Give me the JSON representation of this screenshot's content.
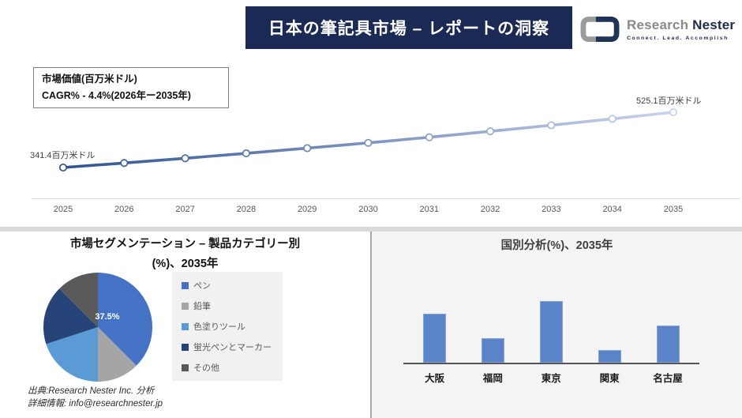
{
  "header": {
    "title": "日本の筆記具市場 – レポートの洞察"
  },
  "logo": {
    "brand_first": "Research",
    "brand_second": "Nester",
    "tagline": "Connect. Lead. Accomplish",
    "icon": "interlocked-links-icon",
    "colors": {
      "gray": "#9b9b9b",
      "navy": "#203457"
    }
  },
  "info_box": {
    "line1": "市場価値(百万米ドル)",
    "line2": "CAGR% - 4.4%(2026年ー2035年)"
  },
  "chart_data": [
    {
      "id": "market-value-trend",
      "type": "line",
      "title": "市場価値(百万米ドル)",
      "x": [
        2025,
        2026,
        2027,
        2028,
        2029,
        2030,
        2031,
        2032,
        2033,
        2034,
        2035
      ],
      "values": [
        341.4,
        356.4,
        372.1,
        388.5,
        405.6,
        423.4,
        442.0,
        461.5,
        481.8,
        503.0,
        525.1
      ],
      "start_label": "341.4百万米ドル",
      "end_label": "525.1百万米ドル",
      "cagr_percent": 4.4,
      "grid": false,
      "marker": "open-circle",
      "line_gradient": [
        "#2f5491",
        "#cbd3ec"
      ]
    },
    {
      "id": "segmentation-pie",
      "type": "pie",
      "title": "市場セグメンテーション – 製品カテゴリー別(%)、2035年",
      "title_line1": "市場セグメンテーション – 製品カテゴリー別",
      "title_line2": "(%)、2035年",
      "labels": [
        "ペン",
        "鉛筆",
        "色塗りツール",
        "蛍光ペンとマーカー",
        "その他"
      ],
      "values": [
        37.5,
        12.5,
        20.0,
        17.5,
        12.5
      ],
      "colors": [
        "#4472c4",
        "#a5a5a5",
        "#5b9bd5",
        "#264478",
        "#595959"
      ],
      "shown_label": "37.5%",
      "legend_position": "right"
    },
    {
      "id": "country-analysis-bar",
      "type": "bar",
      "title": "国別分析(%)、2035年",
      "categories": [
        "大阪",
        "福岡",
        "東京",
        "関東",
        "名古屋"
      ],
      "values": [
        24,
        12,
        30,
        6,
        18
      ],
      "bar_color": "#5b84c8",
      "ylim": [
        0,
        35
      ],
      "grid": false
    }
  ],
  "footer": {
    "line1": "出典:Research Nester Inc. 分析",
    "line2": "詳細情報: info@researchnester.jp"
  },
  "colors": {
    "banner_bg": "#1b2a55",
    "right_panel_bg": "#f5f4f4",
    "divider": "#d9d9d9",
    "axis": "#dcdcdc"
  }
}
